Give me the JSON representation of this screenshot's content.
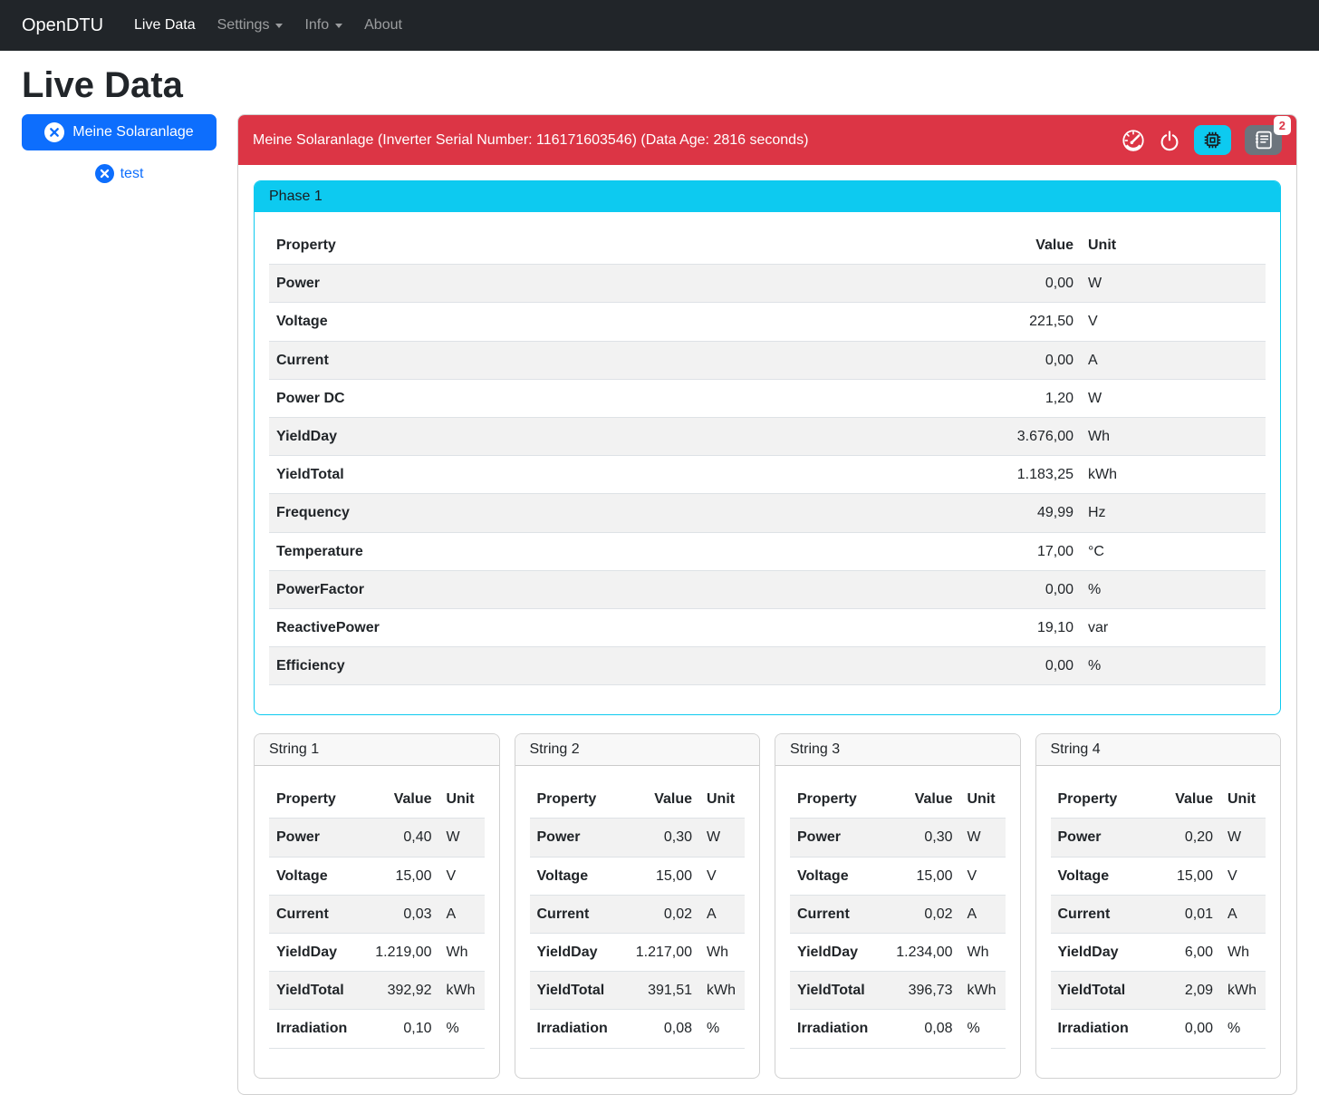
{
  "navbar": {
    "brand": "OpenDTU",
    "links": [
      {
        "label": "Live Data",
        "active": true,
        "dropdown": false
      },
      {
        "label": "Settings",
        "active": false,
        "dropdown": true
      },
      {
        "label": "Info",
        "active": false,
        "dropdown": true
      },
      {
        "label": "About",
        "active": false,
        "dropdown": false
      }
    ]
  },
  "page": {
    "title": "Live Data"
  },
  "sidebar": {
    "selected_inverter": "Meine Solaranlage",
    "other_inverter": "test"
  },
  "panel": {
    "title": "Meine Solaranlage (Inverter Serial Number: 116171603546) (Data Age: 2816 seconds)",
    "event_badge_count": "2"
  },
  "icons": {
    "header_actions": [
      "speedometer-icon",
      "power-icon",
      "cpu-icon",
      "journal-text-icon"
    ],
    "inverter_remove": "x-circle-icon",
    "dropdown": "chevron-down-icon"
  },
  "colors": {
    "navbar_bg": "#212529",
    "primary": "#0d6efd",
    "danger": "#dc3545",
    "info": "#0dcaf0",
    "secondary": "#6c757d",
    "stripe": "#f2f2f2"
  },
  "table_columns": {
    "property": "Property",
    "value": "Value",
    "unit": "Unit"
  },
  "phase": {
    "title": "Phase 1",
    "rows": [
      [
        "Power",
        "0,00",
        "W"
      ],
      [
        "Voltage",
        "221,50",
        "V"
      ],
      [
        "Current",
        "0,00",
        "A"
      ],
      [
        "Power DC",
        "1,20",
        "W"
      ],
      [
        "YieldDay",
        "3.676,00",
        "Wh"
      ],
      [
        "YieldTotal",
        "1.183,25",
        "kWh"
      ],
      [
        "Frequency",
        "49,99",
        "Hz"
      ],
      [
        "Temperature",
        "17,00",
        "°C"
      ],
      [
        "PowerFactor",
        "0,00",
        "%"
      ],
      [
        "ReactivePower",
        "19,10",
        "var"
      ],
      [
        "Efficiency",
        "0,00",
        "%"
      ]
    ]
  },
  "strings": [
    {
      "title": "String 1",
      "rows": [
        [
          "Power",
          "0,40",
          "W"
        ],
        [
          "Voltage",
          "15,00",
          "V"
        ],
        [
          "Current",
          "0,03",
          "A"
        ],
        [
          "YieldDay",
          "1.219,00",
          "Wh"
        ],
        [
          "YieldTotal",
          "392,92",
          "kWh"
        ],
        [
          "Irradiation",
          "0,10",
          "%"
        ]
      ]
    },
    {
      "title": "String 2",
      "rows": [
        [
          "Power",
          "0,30",
          "W"
        ],
        [
          "Voltage",
          "15,00",
          "V"
        ],
        [
          "Current",
          "0,02",
          "A"
        ],
        [
          "YieldDay",
          "1.217,00",
          "Wh"
        ],
        [
          "YieldTotal",
          "391,51",
          "kWh"
        ],
        [
          "Irradiation",
          "0,08",
          "%"
        ]
      ]
    },
    {
      "title": "String 3",
      "rows": [
        [
          "Power",
          "0,30",
          "W"
        ],
        [
          "Voltage",
          "15,00",
          "V"
        ],
        [
          "Current",
          "0,02",
          "A"
        ],
        [
          "YieldDay",
          "1.234,00",
          "Wh"
        ],
        [
          "YieldTotal",
          "396,73",
          "kWh"
        ],
        [
          "Irradiation",
          "0,08",
          "%"
        ]
      ]
    },
    {
      "title": "String 4",
      "rows": [
        [
          "Power",
          "0,20",
          "W"
        ],
        [
          "Voltage",
          "15,00",
          "V"
        ],
        [
          "Current",
          "0,01",
          "A"
        ],
        [
          "YieldDay",
          "6,00",
          "Wh"
        ],
        [
          "YieldTotal",
          "2,09",
          "kWh"
        ],
        [
          "Irradiation",
          "0,00",
          "%"
        ]
      ]
    }
  ]
}
